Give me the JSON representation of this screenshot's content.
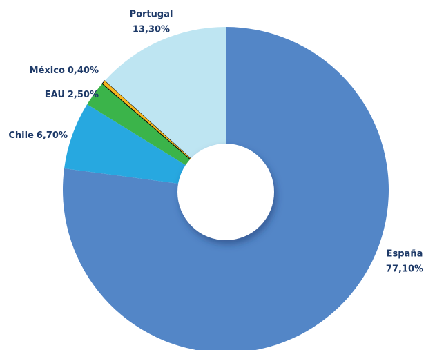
{
  "chart_data": {
    "type": "donut",
    "categories": [
      "España",
      "Chile",
      "EAU",
      "México",
      "Portugal"
    ],
    "values": [
      77.1,
      6.7,
      2.5,
      0.4,
      13.3
    ],
    "value_labels": [
      "77,10%",
      "6,70%",
      "2,50%",
      "0,40%",
      "13,30%"
    ],
    "colors": [
      "#5386c7",
      "#27a8e0",
      "#3bb44a",
      "#f6b51f",
      "#bee5f2"
    ]
  }
}
